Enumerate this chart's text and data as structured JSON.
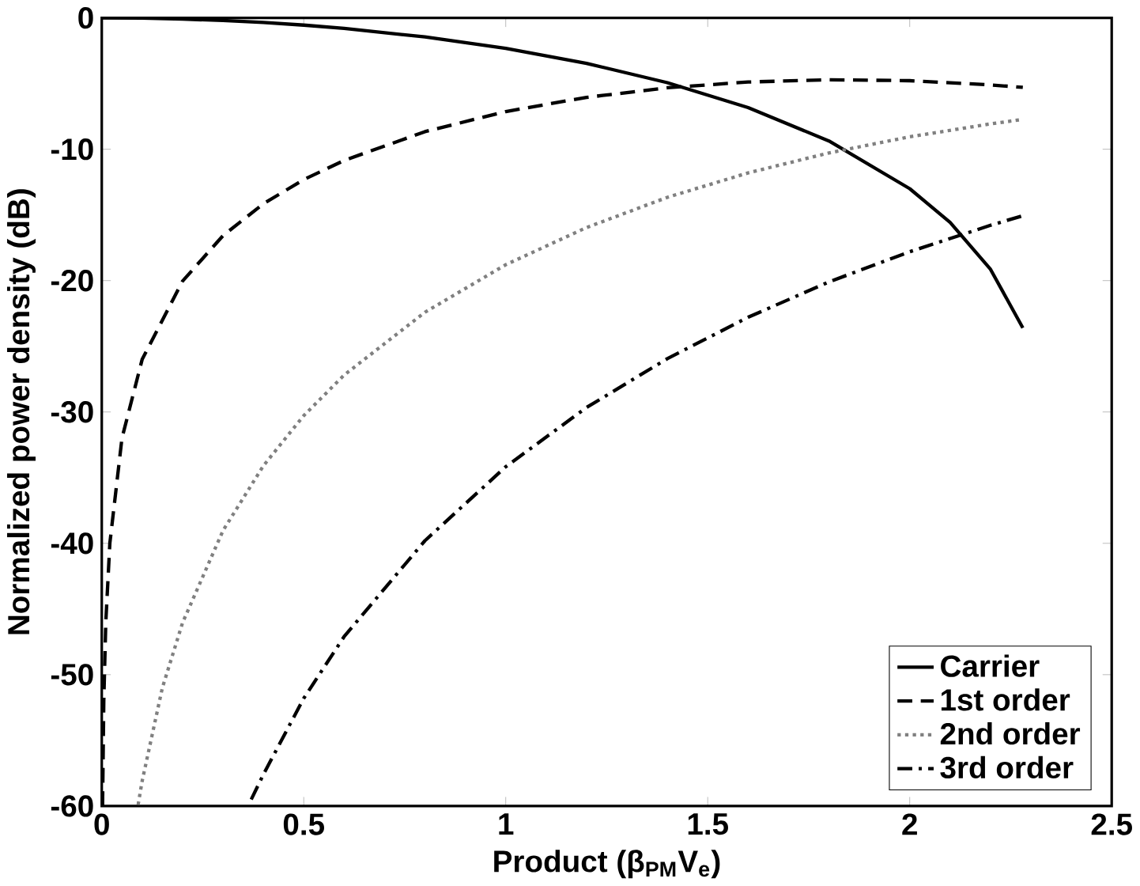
{
  "chart_data": {
    "type": "line",
    "xlabel": "Product (β$_{PM}$V$_{e}$)",
    "ylabel": "Normalized power density (dB)",
    "xlim": [
      0,
      2.5
    ],
    "ylim": [
      -60,
      0
    ],
    "xticks": [
      0,
      0.5,
      1,
      1.5,
      2,
      2.5
    ],
    "yticks": [
      -60,
      -50,
      -40,
      -30,
      -20,
      -10,
      0
    ],
    "legend": "bottom right",
    "series": [
      {
        "name": "Carrier",
        "color": "#000000",
        "line_style": "solid",
        "x": [
          0,
          0.1,
          0.2,
          0.3,
          0.4,
          0.5,
          0.6,
          0.8,
          1.0,
          1.2,
          1.4,
          1.6,
          1.8,
          2.0,
          2.1,
          2.2,
          2.28
        ],
        "values": [
          0,
          -0.02,
          -0.09,
          -0.2,
          -0.35,
          -0.55,
          -0.8,
          -1.45,
          -2.32,
          -3.46,
          -4.93,
          -6.83,
          -9.37,
          -13.0,
          -15.57,
          -19.14,
          -23.6
        ]
      },
      {
        "name": "1st order",
        "color": "#000000",
        "line_style": "dashed",
        "x": [
          0.002,
          0.005,
          0.01,
          0.02,
          0.05,
          0.1,
          0.2,
          0.3,
          0.4,
          0.5,
          0.6,
          0.8,
          1.0,
          1.2,
          1.4,
          1.6,
          1.8,
          2.0,
          2.2,
          2.28
        ],
        "values": [
          -60,
          -52,
          -46,
          -40,
          -32,
          -26,
          -20.04,
          -16.58,
          -14.15,
          -12.31,
          -10.85,
          -8.66,
          -7.13,
          -6.05,
          -5.32,
          -4.88,
          -4.71,
          -4.78,
          -5.1,
          -5.29
        ]
      },
      {
        "name": "2nd order",
        "color": "#808080",
        "line_style": "dotted",
        "x": [
          0.09,
          0.1,
          0.15,
          0.2,
          0.3,
          0.4,
          0.5,
          0.6,
          0.8,
          1.0,
          1.2,
          1.4,
          1.6,
          1.8,
          2.0,
          2.2,
          2.28
        ],
        "values": [
          -59.9,
          -58.1,
          -51.0,
          -46.05,
          -39.04,
          -34.1,
          -30.28,
          -27.19,
          -22.41,
          -18.79,
          -15.96,
          -13.66,
          -11.8,
          -10.28,
          -9.05,
          -8.07,
          -7.73
        ]
      },
      {
        "name": "3rd order",
        "color": "#000000",
        "line_style": "dashdot",
        "x": [
          0.37,
          0.4,
          0.5,
          0.6,
          0.8,
          1.0,
          1.2,
          1.4,
          1.6,
          1.8,
          2.0,
          2.2,
          2.28
        ],
        "values": [
          -59.5,
          -57.6,
          -51.8,
          -47.1,
          -39.8,
          -34.17,
          -29.66,
          -25.94,
          -22.79,
          -20.1,
          -17.8,
          -15.79,
          -15.06
        ]
      }
    ]
  }
}
